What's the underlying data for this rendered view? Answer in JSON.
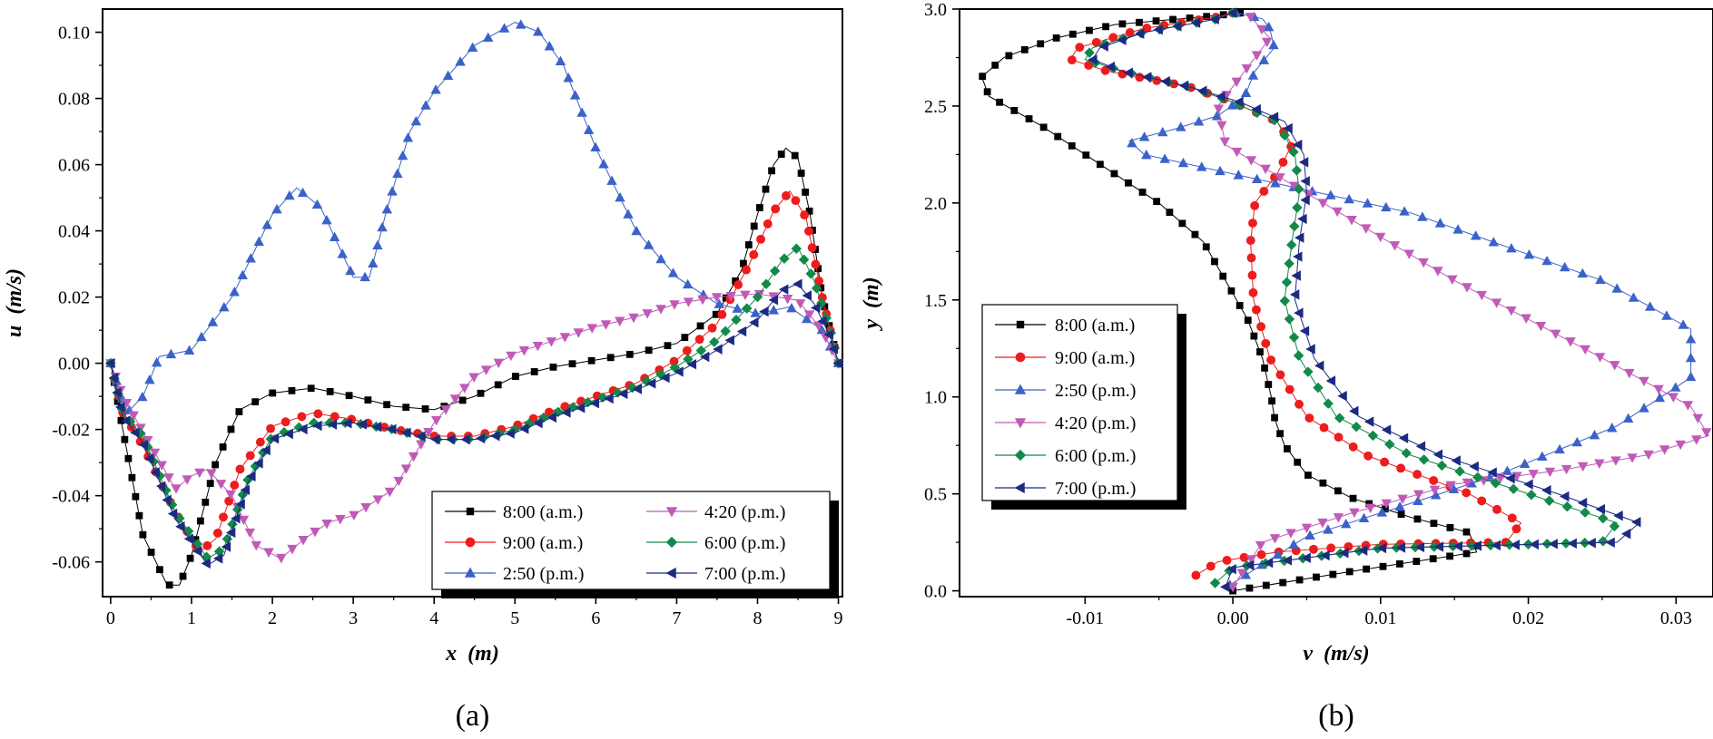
{
  "chart_data": [
    {
      "type": "line",
      "panel_label": "(a)",
      "xlabel": "x (m)",
      "ylabel": "u (m/s)",
      "xlabel_parts": [
        "x",
        "(m)"
      ],
      "ylabel_parts": [
        "u",
        "(m/s)"
      ],
      "xlim": [
        -0.1,
        9.05
      ],
      "ylim": [
        -0.0705,
        0.107
      ],
      "xticks": [
        0,
        1,
        2,
        3,
        4,
        5,
        6,
        7,
        8,
        9
      ],
      "xtick_labels": [
        "0",
        "1",
        "2",
        "3",
        "4",
        "5",
        "6",
        "7",
        "8",
        "9"
      ],
      "yticks": [
        -0.06,
        -0.04,
        -0.02,
        0,
        0.02,
        0.04,
        0.06,
        0.08,
        0.1
      ],
      "ytick_labels": [
        "-0.06",
        "-0.04",
        "-0.02",
        "0.00",
        "0.02",
        "0.04",
        "0.06",
        "0.08",
        "0.10"
      ],
      "grid": false,
      "legend_position": "bottom-right",
      "legend_columns": 2,
      "series": [
        {
          "name": "8:00 (a.m.)",
          "color": "#000000",
          "marker": "square",
          "x": [
            0,
            0.15,
            0.4,
            0.7,
            0.85,
            1.0,
            1.3,
            1.6,
            2.0,
            2.5,
            3.0,
            3.5,
            4.0,
            4.5,
            5.0,
            5.5,
            6.0,
            6.5,
            7.0,
            7.5,
            7.8,
            8.0,
            8.2,
            8.35,
            8.5,
            8.65,
            8.8,
            9.0
          ],
          "y": [
            0,
            -0.02,
            -0.052,
            -0.067,
            -0.067,
            -0.058,
            -0.03,
            -0.014,
            -0.009,
            -0.0075,
            -0.01,
            -0.013,
            -0.014,
            -0.01,
            -0.004,
            -0.001,
            0.001,
            0.003,
            0.006,
            0.015,
            0.028,
            0.045,
            0.06,
            0.065,
            0.062,
            0.045,
            0.02,
            0
          ]
        },
        {
          "name": "9:00 (a.m.)",
          "color": "#ee1c1c",
          "marker": "circle",
          "x": [
            0,
            0.15,
            0.4,
            0.8,
            1.1,
            1.3,
            1.6,
            2.0,
            2.5,
            3.0,
            3.5,
            4.0,
            4.5,
            5.0,
            5.5,
            6.0,
            6.5,
            7.0,
            7.5,
            7.9,
            8.2,
            8.4,
            8.6,
            8.8,
            9.0
          ],
          "y": [
            0,
            -0.015,
            -0.025,
            -0.045,
            -0.057,
            -0.053,
            -0.032,
            -0.019,
            -0.015,
            -0.017,
            -0.02,
            -0.022,
            -0.022,
            -0.019,
            -0.014,
            -0.01,
            -0.006,
            0.001,
            0.012,
            0.03,
            0.046,
            0.052,
            0.044,
            0.02,
            0
          ]
        },
        {
          "name": "2:50 (p.m.)",
          "color": "#3a62c8",
          "marker": "triangle-up",
          "x": [
            0,
            0.2,
            0.4,
            0.6,
            1.0,
            1.5,
            2.0,
            2.3,
            2.6,
            3.0,
            3.2,
            3.4,
            3.7,
            4.0,
            4.5,
            5.0,
            5.3,
            5.6,
            6.0,
            6.5,
            7.0,
            7.5,
            8.0,
            8.4,
            8.8,
            9.0
          ],
          "y": [
            0,
            -0.015,
            -0.01,
            0.002,
            0.004,
            0.02,
            0.045,
            0.053,
            0.047,
            0.026,
            0.026,
            0.045,
            0.07,
            0.082,
            0.096,
            0.103,
            0.1,
            0.09,
            0.065,
            0.04,
            0.026,
            0.018,
            0.015,
            0.017,
            0.01,
            0
          ]
        },
        {
          "name": "4:20 (p.m.)",
          "color": "#c05ab8",
          "marker": "triangle-down",
          "x": [
            0,
            0.15,
            0.5,
            0.8,
            1.0,
            1.2,
            1.5,
            1.8,
            2.1,
            2.4,
            2.7,
            3.0,
            3.5,
            4.0,
            4.5,
            5.0,
            5.5,
            6.0,
            6.5,
            7.0,
            7.5,
            8.0,
            8.5,
            8.8,
            9.0
          ],
          "y": [
            0,
            -0.01,
            -0.025,
            -0.038,
            -0.034,
            -0.032,
            -0.04,
            -0.055,
            -0.059,
            -0.053,
            -0.048,
            -0.046,
            -0.038,
            -0.018,
            -0.004,
            0.003,
            0.007,
            0.011,
            0.014,
            0.018,
            0.02,
            0.021,
            0.019,
            0.01,
            0
          ]
        },
        {
          "name": "6:00 (p.m.)",
          "color": "#12894a",
          "marker": "diamond",
          "x": [
            0,
            0.15,
            0.4,
            0.8,
            1.2,
            1.4,
            1.7,
            2.0,
            2.5,
            3.0,
            3.5,
            4.0,
            4.5,
            5.0,
            5.5,
            6.0,
            6.5,
            7.0,
            7.5,
            8.0,
            8.3,
            8.5,
            8.7,
            8.9,
            9.0
          ],
          "y": [
            0,
            -0.015,
            -0.022,
            -0.045,
            -0.059,
            -0.056,
            -0.035,
            -0.022,
            -0.018,
            -0.018,
            -0.02,
            -0.023,
            -0.023,
            -0.02,
            -0.015,
            -0.011,
            -0.007,
            -0.001,
            0.007,
            0.02,
            0.031,
            0.035,
            0.025,
            0.01,
            0
          ]
        },
        {
          "name": "7:00 (p.m.)",
          "color": "#1c2a82",
          "marker": "triangle-left",
          "x": [
            0,
            0.15,
            0.4,
            0.8,
            1.2,
            1.4,
            1.7,
            2.0,
            2.5,
            3.0,
            3.5,
            4.0,
            4.5,
            5.0,
            5.5,
            6.0,
            6.5,
            7.0,
            7.5,
            8.0,
            8.3,
            8.5,
            8.7,
            8.9,
            9.0
          ],
          "y": [
            0,
            -0.016,
            -0.024,
            -0.047,
            -0.061,
            -0.058,
            -0.036,
            -0.023,
            -0.019,
            -0.018,
            -0.02,
            -0.023,
            -0.023,
            -0.021,
            -0.016,
            -0.012,
            -0.008,
            -0.003,
            0.004,
            0.013,
            0.022,
            0.024,
            0.018,
            0.008,
            0
          ]
        }
      ]
    },
    {
      "type": "line",
      "panel_label": "(b)",
      "xlabel": "v (m/s)",
      "ylabel": "y (m)",
      "xlabel_parts": [
        "v",
        "(m/s)"
      ],
      "ylabel_parts": [
        "y",
        "(m)"
      ],
      "xlim": [
        -0.0185,
        0.0325
      ],
      "ylim": [
        -0.03,
        3.0
      ],
      "xticks": [
        -0.01,
        0,
        0.01,
        0.02,
        0.03
      ],
      "xtick_labels": [
        "-0.01",
        "0.00",
        "0.01",
        "0.02",
        "0.03"
      ],
      "yticks": [
        0,
        0.5,
        1.0,
        1.5,
        2.0,
        2.5,
        3.0
      ],
      "ytick_labels": [
        "0.0",
        "0.5",
        "1.0",
        "1.5",
        "2.0",
        "2.5",
        "3.0"
      ],
      "grid": false,
      "legend_position": "top-left",
      "legend_columns": 1,
      "series": [
        {
          "name": "8:00 (a.m.)",
          "color": "#000000",
          "marker": "square",
          "x": [
            0.0,
            0.008,
            0.0165,
            0.016,
            0.012,
            0.008,
            0.005,
            0.0035,
            0.003,
            0.0028,
            0.0026,
            0.002,
            0.001,
            -0.0005,
            -0.002,
            -0.005,
            -0.009,
            -0.013,
            -0.0165,
            -0.017,
            -0.0155,
            -0.012,
            -0.008,
            -0.002,
            0.0005
          ],
          "y": [
            0.0,
            0.1,
            0.2,
            0.3,
            0.38,
            0.48,
            0.6,
            0.75,
            0.85,
            0.9,
            1.0,
            1.2,
            1.4,
            1.6,
            1.8,
            2.0,
            2.2,
            2.4,
            2.55,
            2.65,
            2.75,
            2.85,
            2.92,
            2.96,
            2.98
          ]
        },
        {
          "name": "9:00 (a.m.)",
          "color": "#ee1c1c",
          "marker": "circle",
          "x": [
            -0.0025,
            -0.001,
            0.003,
            0.01,
            0.0185,
            0.0195,
            0.016,
            0.009,
            0.005,
            0.0025,
            0.0014,
            0.0012,
            0.0015,
            0.003,
            0.004,
            0.003,
            0.0,
            -0.003,
            -0.0085,
            -0.011,
            -0.0105,
            -0.006,
            -0.001,
            0.0
          ],
          "y": [
            0.08,
            0.15,
            0.2,
            0.24,
            0.25,
            0.35,
            0.5,
            0.7,
            0.9,
            1.2,
            1.5,
            1.8,
            2.0,
            2.15,
            2.3,
            2.42,
            2.52,
            2.6,
            2.68,
            2.74,
            2.8,
            2.9,
            2.96,
            2.98
          ]
        },
        {
          "name": "2:50 (p.m.)",
          "color": "#3a62c8",
          "marker": "triangle-up",
          "x": [
            -0.0002,
            0.005,
            0.012,
            0.018,
            0.026,
            0.031,
            0.031,
            0.025,
            0.012,
            0.003,
            -0.006,
            -0.007,
            -0.004,
            -0.001,
            0.0008,
            0.0015,
            0.0028,
            0.0025,
            0.002,
            0.0008,
            0.0002
          ],
          "y": [
            0.03,
            0.28,
            0.45,
            0.6,
            0.85,
            1.1,
            1.35,
            1.6,
            1.95,
            2.1,
            2.25,
            2.32,
            2.38,
            2.45,
            2.55,
            2.68,
            2.8,
            2.9,
            2.95,
            2.97,
            2.98
          ]
        },
        {
          "name": "4:20 (p.m.)",
          "color": "#c05ab8",
          "marker": "triangle-down",
          "x": [
            0.0,
            0.002,
            0.008,
            0.015,
            0.022,
            0.028,
            0.0322,
            0.031,
            0.025,
            0.015,
            0.005,
            -0.0005,
            -0.001,
            0.001,
            0.0025,
            0.0012
          ],
          "y": [
            0.02,
            0.25,
            0.4,
            0.55,
            0.62,
            0.7,
            0.8,
            0.95,
            1.2,
            1.6,
            2.05,
            2.3,
            2.5,
            2.7,
            2.85,
            2.96
          ]
        },
        {
          "name": "6:00 (p.m.)",
          "color": "#12894a",
          "marker": "diamond",
          "x": [
            -0.0012,
            0.0,
            0.01,
            0.025,
            0.026,
            0.02,
            0.012,
            0.007,
            0.0045,
            0.0035,
            0.004,
            0.0045,
            0.0042,
            0.003,
            0.0,
            -0.003,
            -0.0075,
            -0.01,
            -0.0095,
            -0.006,
            -0.001,
            0.0
          ],
          "y": [
            0.04,
            0.12,
            0.22,
            0.25,
            0.35,
            0.5,
            0.7,
            0.9,
            1.2,
            1.5,
            1.8,
            2.05,
            2.25,
            2.42,
            2.52,
            2.6,
            2.68,
            2.74,
            2.8,
            2.88,
            2.95,
            2.98
          ]
        },
        {
          "name": "7:00 (p.m.)",
          "color": "#1c2a82",
          "marker": "triangle-left",
          "x": [
            -0.0005,
            0.0,
            0.01,
            0.026,
            0.0275,
            0.022,
            0.014,
            0.0085,
            0.0055,
            0.0042,
            0.0045,
            0.005,
            0.0048,
            0.0035,
            0.0005,
            -0.003,
            -0.0075,
            -0.0095,
            -0.009,
            -0.006,
            -0.001,
            0.0
          ],
          "y": [
            0.02,
            0.12,
            0.22,
            0.25,
            0.35,
            0.5,
            0.7,
            0.9,
            1.2,
            1.5,
            1.8,
            2.05,
            2.25,
            2.42,
            2.52,
            2.6,
            2.68,
            2.74,
            2.8,
            2.88,
            2.95,
            2.98
          ]
        }
      ]
    }
  ]
}
